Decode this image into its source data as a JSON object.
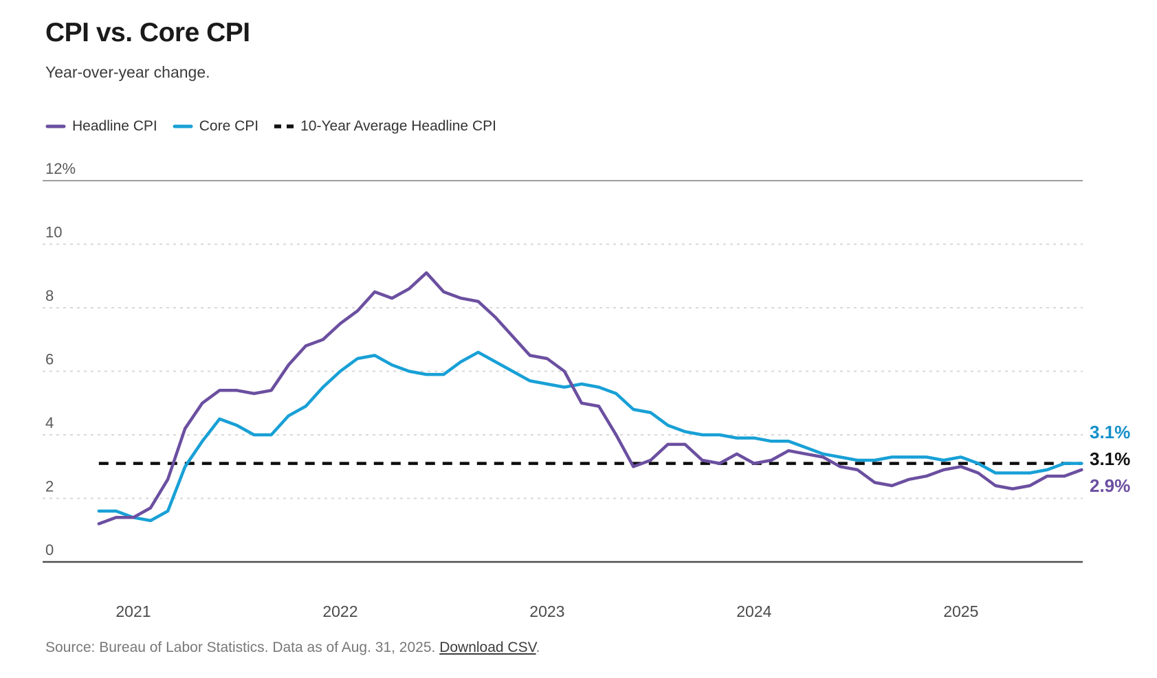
{
  "header": {
    "title": "CPI vs. Core CPI",
    "subtitle": "Year-over-year change."
  },
  "legend": [
    {
      "label": "Headline CPI",
      "color": "#6b4fa0",
      "style": "solid"
    },
    {
      "label": "Core CPI",
      "color": "#18a0d6",
      "style": "solid"
    },
    {
      "label": "10-Year Average Headline CPI",
      "color": "#111111",
      "style": "dashed"
    }
  ],
  "footer": {
    "source_text": "Source: Bureau of Labor Statistics. Data as of Aug. 31, 2025. ",
    "link_text": "Download CSV",
    "link_suffix": "."
  },
  "chart_data": {
    "type": "line",
    "title": "CPI vs. Core CPI",
    "subtitle": "Year-over-year change.",
    "x_start_month": "2020-11",
    "x_end_month": "2025-08",
    "x_frequency": "monthly",
    "ylim": [
      0,
      12
    ],
    "grid": "horizontal",
    "legend_position": "top",
    "y_ticks": [
      {
        "value": 12,
        "label": "12%"
      },
      {
        "value": 10,
        "label": "10"
      },
      {
        "value": 8,
        "label": "8"
      },
      {
        "value": 6,
        "label": "6"
      },
      {
        "value": 4,
        "label": "4"
      },
      {
        "value": 2,
        "label": "2"
      },
      {
        "value": 0,
        "label": "0"
      }
    ],
    "x_ticks": [
      {
        "label": "2021",
        "month_index": 2
      },
      {
        "label": "2022",
        "month_index": 14
      },
      {
        "label": "2023",
        "month_index": 26
      },
      {
        "label": "2024",
        "month_index": 38
      },
      {
        "label": "2025",
        "month_index": 50
      }
    ],
    "series": [
      {
        "name": "Core CPI",
        "color": "#18a0d6",
        "values": [
          1.6,
          1.6,
          1.4,
          1.3,
          1.6,
          3.0,
          3.8,
          4.5,
          4.3,
          4.0,
          4.0,
          4.6,
          4.9,
          5.5,
          6.0,
          6.4,
          6.5,
          6.2,
          6.0,
          5.9,
          5.9,
          6.3,
          6.6,
          6.3,
          6.0,
          5.7,
          5.6,
          5.5,
          5.6,
          5.5,
          5.3,
          4.8,
          4.7,
          4.3,
          4.1,
          4.0,
          4.0,
          3.9,
          3.9,
          3.8,
          3.8,
          3.6,
          3.4,
          3.3,
          3.2,
          3.2,
          3.3,
          3.3,
          3.3,
          3.2,
          3.3,
          3.1,
          2.8,
          2.8,
          2.8,
          2.9,
          3.1,
          3.1
        ]
      },
      {
        "name": "Headline CPI",
        "color": "#6b4fa0",
        "values": [
          1.2,
          1.4,
          1.4,
          1.7,
          2.6,
          4.2,
          5.0,
          5.4,
          5.4,
          5.3,
          5.4,
          6.2,
          6.8,
          7.0,
          7.5,
          7.9,
          8.5,
          8.3,
          8.6,
          9.1,
          8.5,
          8.3,
          8.2,
          7.7,
          7.1,
          6.5,
          6.4,
          6.0,
          5.0,
          4.9,
          4.0,
          3.0,
          3.2,
          3.7,
          3.7,
          3.2,
          3.1,
          3.4,
          3.1,
          3.2,
          3.5,
          3.4,
          3.3,
          3.0,
          2.9,
          2.5,
          2.4,
          2.6,
          2.7,
          2.9,
          3.0,
          2.8,
          2.4,
          2.3,
          2.4,
          2.7,
          2.7,
          2.9
        ]
      }
    ],
    "average_line": {
      "name": "10-Year Average Headline CPI",
      "value": 3.1,
      "color": "#0d0d0d",
      "style": "dashed"
    },
    "end_labels": [
      {
        "text": "3.1%",
        "color": "#1590c9",
        "series": "Core CPI"
      },
      {
        "text": "3.1%",
        "color": "#111111",
        "series": "10-Year Average Headline CPI"
      },
      {
        "text": "2.9%",
        "color": "#6b4fa0",
        "series": "Headline CPI"
      }
    ]
  }
}
